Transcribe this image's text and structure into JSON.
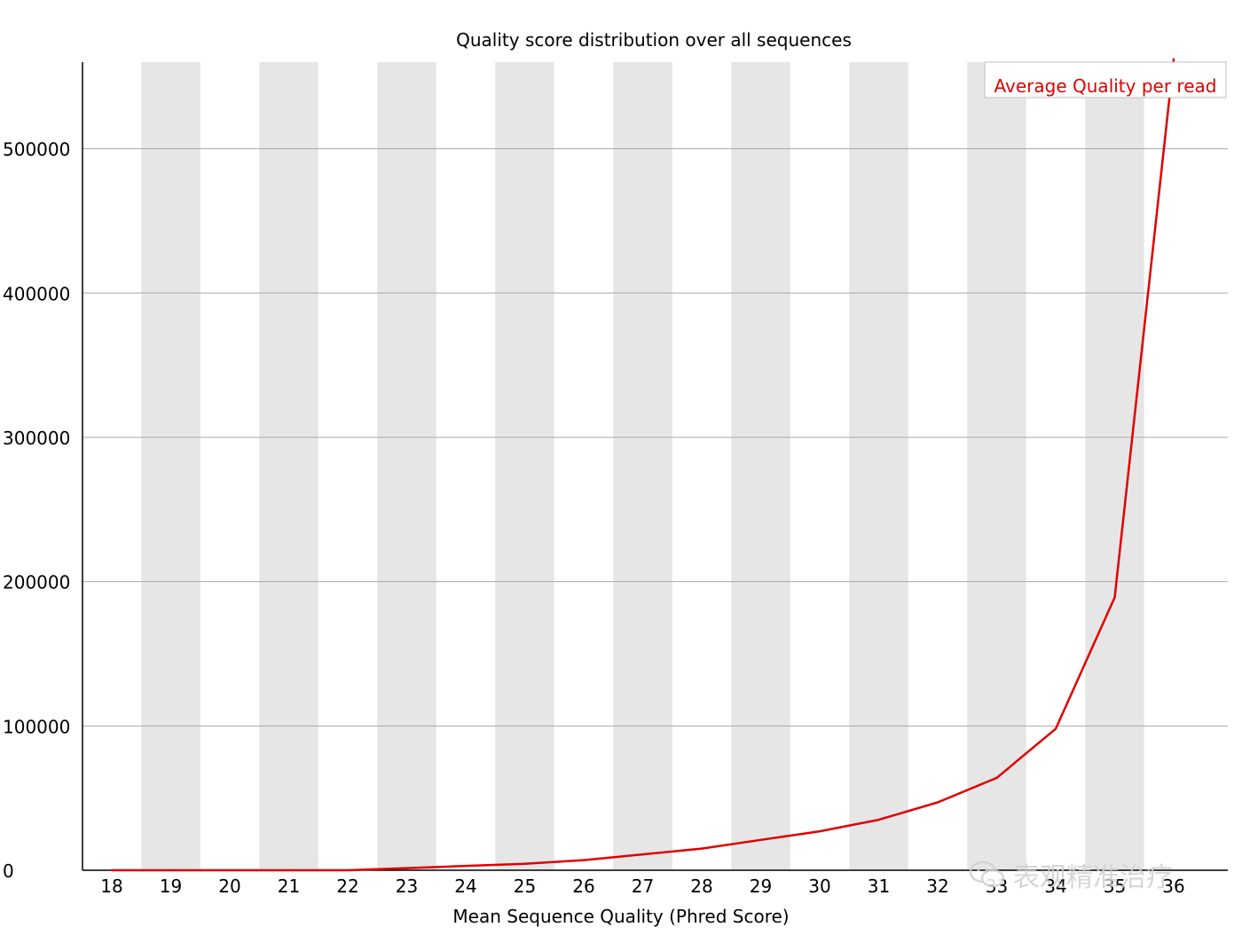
{
  "chart_data": {
    "type": "line",
    "title": "Quality score distribution over all sequences",
    "xlabel": "Mean Sequence Quality (Phred Score)",
    "ylabel": "",
    "x": [
      18,
      19,
      20,
      21,
      22,
      23,
      24,
      25,
      26,
      27,
      28,
      29,
      30,
      31,
      32,
      33,
      34,
      35,
      36
    ],
    "y_ticks": [
      0,
      100000,
      200000,
      300000,
      400000,
      500000
    ],
    "ylim": [
      0,
      560000
    ],
    "grid": true,
    "alternating_column_shading": true,
    "legend_position": "top-right",
    "series": [
      {
        "name": "Average Quality per read",
        "color": "#e00000",
        "values": [
          0,
          0,
          0,
          0,
          0,
          1500,
          3000,
          4500,
          7000,
          11000,
          15000,
          21000,
          27000,
          35000,
          47000,
          64000,
          98000,
          189000,
          562000
        ]
      }
    ]
  },
  "watermark": {
    "text": "表观精准治疗",
    "icon": "wechat-icon"
  }
}
